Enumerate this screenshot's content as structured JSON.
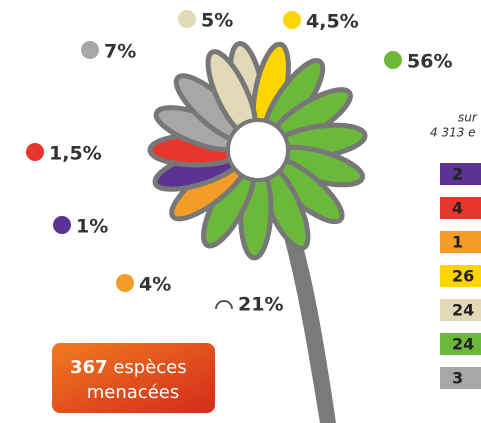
{
  "labels": [
    {
      "text": "5%",
      "color": "#e2d9b8"
    },
    {
      "text": "4,5%",
      "color": "#ffd500"
    },
    {
      "text": "7%",
      "color": "#a7a7a7"
    },
    {
      "text": "56%",
      "color": "#6cb83a"
    },
    {
      "text": "1,5%",
      "color": "#e8362c"
    },
    {
      "text": "1%",
      "color": "#5b3393"
    },
    {
      "text": "4%",
      "color": "#f39c27"
    },
    {
      "text": "21%",
      "color": "#555555"
    }
  ],
  "box": {
    "number": "367",
    "line1": "espèces",
    "line2": "menacées"
  },
  "legend": {
    "line1": "sur",
    "line2": "4 313 e",
    "items": [
      {
        "text": "2",
        "color": "#5b3393"
      },
      {
        "text": "4",
        "color": "#e8362c"
      },
      {
        "text": "1",
        "color": "#f39c27"
      },
      {
        "text": "26",
        "color": "#ffd500"
      },
      {
        "text": "24",
        "color": "#e2d9b8"
      },
      {
        "text": "24",
        "color": "#6cb83a"
      },
      {
        "text": "3",
        "color": "#a7a7a7"
      }
    ]
  }
}
